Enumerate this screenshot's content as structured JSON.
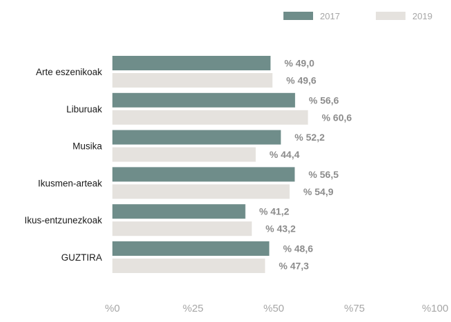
{
  "chart_data": {
    "type": "bar",
    "orientation": "horizontal",
    "categories": [
      "Arte eszenikoak",
      "Liburuak",
      "Musika",
      "Ikusmen-arteak",
      "Ikus-entzunezkoak",
      "GUZTIRA"
    ],
    "series": [
      {
        "name": "2017",
        "color": "#6f8d8a",
        "values": [
          49.0,
          56.6,
          52.2,
          56.5,
          41.2,
          48.6
        ],
        "labels": [
          "% 49,0",
          "% 56,6",
          "% 52,2",
          "% 56,5",
          "% 41,2",
          "% 48,6"
        ]
      },
      {
        "name": "2019",
        "color": "#e5e2de",
        "values": [
          49.6,
          60.6,
          44.4,
          54.9,
          43.2,
          47.3
        ],
        "labels": [
          "% 49,6",
          "% 60,6",
          "% 44,4",
          "% 54,9",
          "% 43,2",
          "% 47,3"
        ]
      }
    ],
    "xlim": [
      0,
      100
    ],
    "xticks": [
      0,
      25,
      50,
      75,
      100
    ],
    "xtick_labels": [
      "%0",
      "%25",
      "%50",
      "%75",
      "%100"
    ],
    "legend_position": "top-right",
    "grid": false,
    "title": "",
    "xlabel": "",
    "ylabel": ""
  }
}
